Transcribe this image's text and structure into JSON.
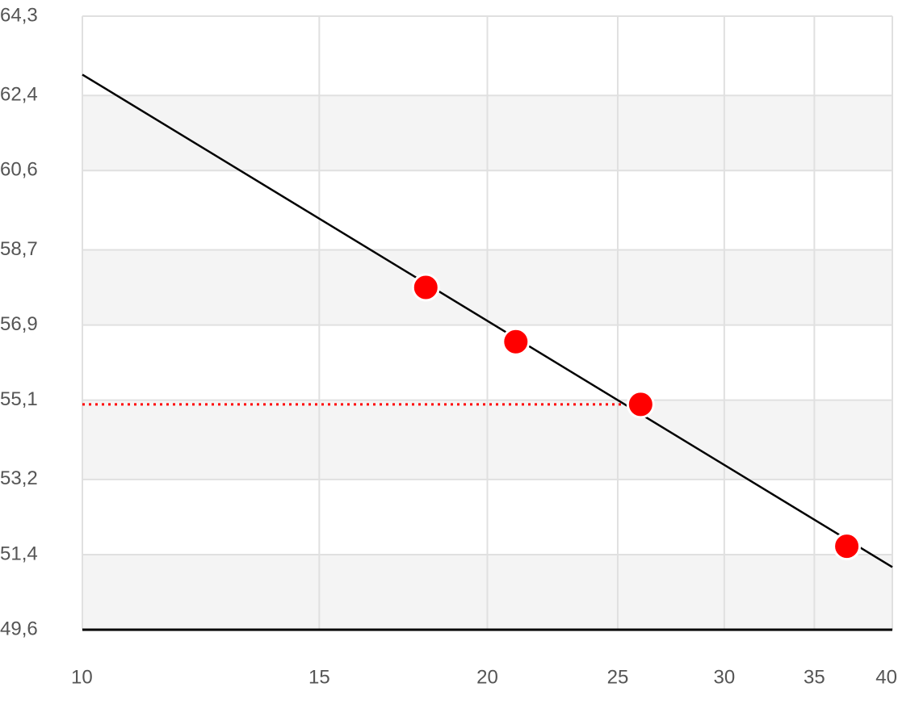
{
  "chart_data": {
    "type": "scatter",
    "x_scale": "log",
    "xlim": [
      10,
      40
    ],
    "xticks": [
      10,
      15,
      20,
      25,
      30,
      35,
      40
    ],
    "ylim": [
      49.6,
      64.3
    ],
    "yticks": [
      {
        "value": 49.6,
        "label": "49,6"
      },
      {
        "value": 51.4,
        "label": "51,4"
      },
      {
        "value": 53.2,
        "label": "53,2"
      },
      {
        "value": 55.1,
        "label": "55,1"
      },
      {
        "value": 56.9,
        "label": "56,9"
      },
      {
        "value": 58.7,
        "label": "58,7"
      },
      {
        "value": 60.6,
        "label": "60,6"
      },
      {
        "value": 62.4,
        "label": "62,4"
      },
      {
        "value": 64.3,
        "label": "64,3"
      }
    ],
    "grid": true,
    "band_color": "#f4f4f4",
    "points": {
      "color": "#ff0000",
      "x": [
        18,
        21,
        26,
        37
      ],
      "values": [
        57.8,
        56.5,
        55.0,
        51.6
      ]
    },
    "trend_line": {
      "color": "#000000",
      "x": [
        10,
        40
      ],
      "values": [
        62.9,
        51.1
      ]
    },
    "reference_line": {
      "color": "#ff0000",
      "y": 55.0
    }
  }
}
